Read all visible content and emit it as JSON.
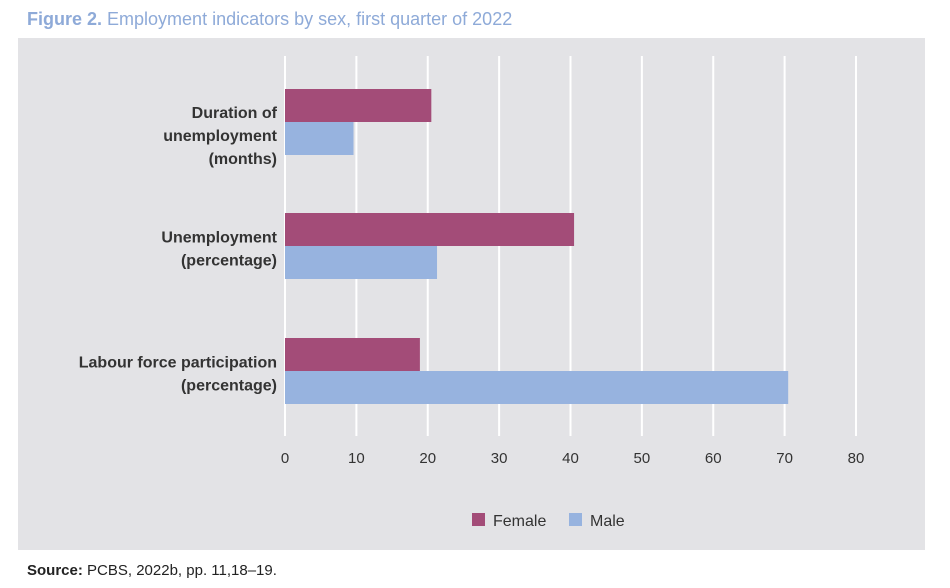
{
  "figure": {
    "number": "Figure 2.",
    "title": "Employment indicators by sex, first quarter of 2022"
  },
  "source": {
    "label": "Source:",
    "text": "PCBS, 2022b, pp. 11,18–19."
  },
  "colors": {
    "female": "#a34c78",
    "male": "#97b3df",
    "grid": "#ffffff",
    "panel": "#e3e3e6",
    "title_accent": "#8eaad8"
  },
  "chart_data": {
    "type": "bar",
    "orientation": "horizontal",
    "title": "Employment indicators by sex, first quarter of 2022",
    "categories": [
      [
        "Duration of",
        "unemployment",
        "(months)"
      ],
      [
        "Unemployment",
        "(percentage)"
      ],
      [
        "Labour force participation",
        "(percentage)"
      ]
    ],
    "series": [
      {
        "name": "Female",
        "values": [
          20.5,
          40.5,
          18.9
        ]
      },
      {
        "name": "Male",
        "values": [
          9.6,
          21.3,
          70.5
        ]
      }
    ],
    "xlim": [
      0,
      80
    ],
    "xticks": [
      0,
      10,
      20,
      30,
      40,
      50,
      60,
      70,
      80
    ],
    "grid": true,
    "legend": "bottom-center",
    "xlabel": "",
    "ylabel": ""
  }
}
